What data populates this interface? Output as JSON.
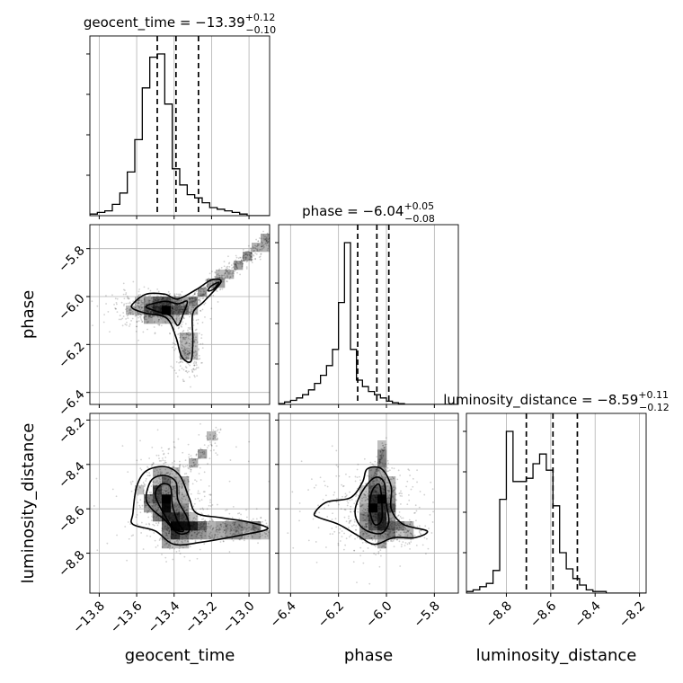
{
  "chart_data": {
    "type": "corner",
    "grid": true,
    "parameters": [
      "geocent_time",
      "phase",
      "luminosity_distance"
    ],
    "axis_labels": {
      "geocent_time": "geocent_time",
      "phase": "phase",
      "luminosity_distance": "luminosity_distance"
    },
    "ranges": {
      "geocent_time": [
        -13.85,
        -12.89
      ],
      "phase": [
        -6.45,
        -5.7
      ],
      "luminosity_distance": [
        -8.98,
        -8.17
      ]
    },
    "ticks": {
      "geocent_time": [
        -13.8,
        -13.6,
        -13.4,
        -13.2,
        -13.0
      ],
      "phase": [
        -6.4,
        -6.2,
        -6.0,
        -5.8
      ],
      "luminosity_distance": [
        -8.8,
        -8.6,
        -8.4,
        -8.2
      ]
    },
    "tick_labels": {
      "geocent_time": [
        "−13.8",
        "−13.6",
        "−13.4",
        "−13.2",
        "−13.0"
      ],
      "phase": [
        "−6.4",
        "−6.2",
        "−6.0",
        "−5.8"
      ],
      "luminosity_distance": [
        "−8.8",
        "−8.6",
        "−8.4",
        "−8.2"
      ]
    },
    "marginal_titles": {
      "geocent_time": {
        "name": "geocent_time",
        "median": "−13.39",
        "plus": "+0.12",
        "minus": "−0.10"
      },
      "phase": {
        "name": "phase",
        "median": "−6.04",
        "plus": "+0.05",
        "minus": "−0.08"
      },
      "luminosity_distance": {
        "name": "luminosity_distance",
        "median": "−8.59",
        "plus": "+0.11",
        "minus": "−0.12"
      }
    },
    "quantiles": {
      "geocent_time": [
        -13.49,
        -13.39,
        -13.27
      ],
      "phase": [
        -6.12,
        -6.04,
        -5.99
      ],
      "luminosity_distance": [
        -8.71,
        -8.59,
        -8.48
      ]
    },
    "histograms": {
      "geocent_time": {
        "x_start": -13.85,
        "bin_width": 0.04,
        "counts": [
          1,
          2,
          3,
          7,
          14,
          27,
          47,
          79,
          98,
          100,
          69,
          29,
          19,
          13,
          11,
          8,
          5,
          4,
          3,
          2,
          1,
          0,
          0,
          0
        ]
      },
      "phase": {
        "x_start": -6.45,
        "bin_width": 0.025,
        "counts": [
          0.5,
          1.5,
          2.5,
          4,
          6,
          9,
          13,
          18,
          24,
          34,
          63,
          100,
          34,
          15,
          11,
          8,
          6,
          4,
          2,
          1,
          0.5,
          0,
          0,
          0,
          0,
          0,
          0,
          0,
          0,
          0
        ]
      },
      "luminosity_distance": {
        "x_start": -8.98,
        "bin_width": 0.03,
        "counts": [
          1,
          2,
          4,
          6,
          14,
          58,
          100,
          69,
          69,
          71,
          80,
          86,
          76,
          54,
          25,
          15,
          9,
          5,
          2,
          1,
          1,
          0,
          0,
          0,
          0,
          0,
          0
        ]
      }
    }
  }
}
